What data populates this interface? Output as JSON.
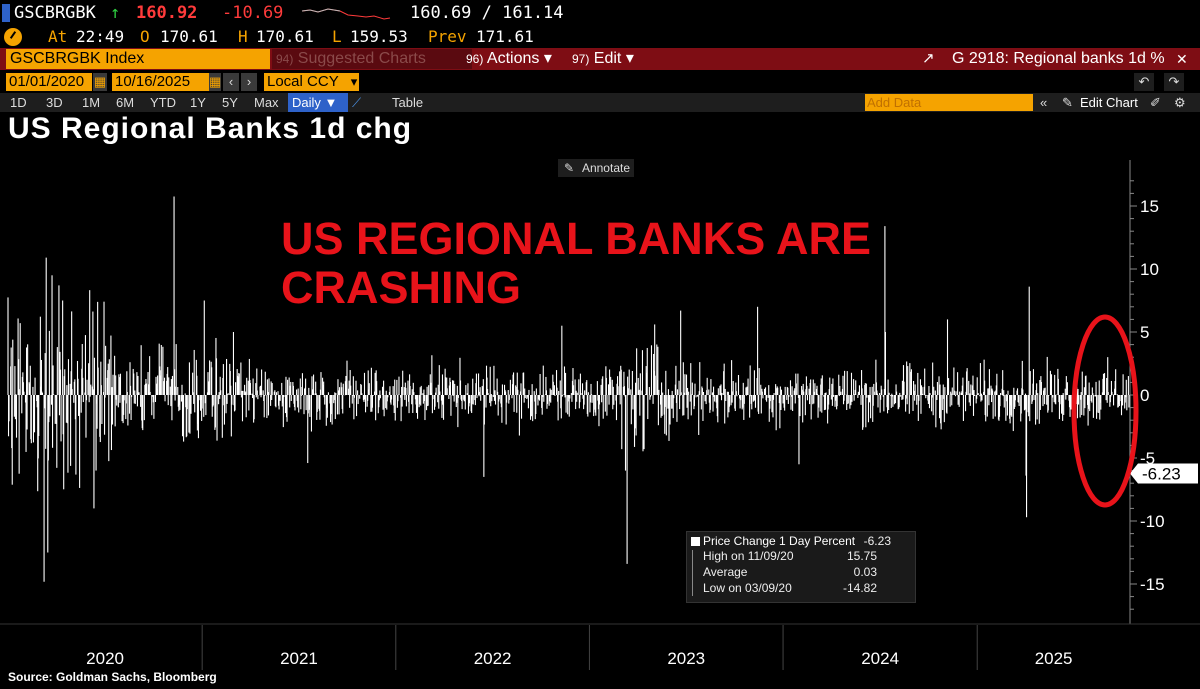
{
  "ticker": {
    "symbol": "GSCBRGBK",
    "arrow": "↑",
    "last": "160.92",
    "change": "-10.69",
    "bid_ask": "160.69 / 161.14"
  },
  "quote": {
    "at_label": "At",
    "at_value": "22:49",
    "open_label": "O",
    "open_value": "170.61",
    "high_label": "H",
    "high_value": "170.61",
    "low_label": "L",
    "low_value": "159.53",
    "prev_label": "Prev",
    "prev_value": "171.61"
  },
  "toolbar": {
    "security": "GSCBRGBK Index",
    "suggested_num": "94)",
    "suggested": "Suggested Charts",
    "actions_num": "96)",
    "actions": "Actions ▾",
    "edit_num": "97)",
    "edit": "Edit ▾",
    "chart_id": "G 2918: Regional banks 1d %"
  },
  "range": {
    "start": "01/01/2020",
    "end": "10/16/2025",
    "currency": "Local CCY"
  },
  "periods": [
    "1D",
    "3D",
    "1M",
    "6M",
    "YTD",
    "1Y",
    "5Y",
    "Max"
  ],
  "frequency": "Daily ▼",
  "table_label": "Table",
  "add_data_placeholder": "Add Data",
  "edit_chart": "Edit Chart",
  "annotate": "Annotate",
  "headline": {
    "line1": "US REGIONAL BANKS ARE",
    "line2": "CRASHING"
  },
  "legend": {
    "series": "Price Change 1 Day Percent",
    "series_value": "-6.23",
    "high_label": "High on 11/09/20",
    "high_value": "15.75",
    "avg_label": "Average",
    "avg_value": "0.03",
    "low_label": "Low on 03/09/20",
    "low_value": "-14.82"
  },
  "source": "Source: Goldman Sachs, Bloomberg",
  "colors": {
    "background": "#000000",
    "series": "#ffffff",
    "headline": "#e8131a",
    "highlight_ellipse": "#e8131a",
    "orange": "#f5a300",
    "menu_bar": "#7e0d14",
    "up_tick": "#2ecc40",
    "down_tick": "#ff3b3b"
  },
  "chart_data": {
    "type": "bar",
    "title": "US Regional Banks 1d chg",
    "series": [
      {
        "name": "Price Change 1 Day Percent",
        "last": -6.23
      }
    ],
    "x_range": [
      "2020-01-01",
      "2025-10-16"
    ],
    "x_tick_labels": [
      "2020",
      "2021",
      "2022",
      "2023",
      "2024",
      "2025"
    ],
    "ylim": [
      -17,
      18
    ],
    "y_ticks": [
      15,
      10,
      5,
      0,
      -5,
      -10,
      -15
    ],
    "last_value_label": "-6.23",
    "grid": false,
    "stats": {
      "high": 15.75,
      "high_date": "11/09/20",
      "average": 0.03,
      "low": -14.82,
      "low_date": "03/09/20"
    },
    "spikes": [
      {
        "date": "2020-03-09",
        "value": -14.82
      },
      {
        "date": "2020-03-13",
        "value": 10.9
      },
      {
        "date": "2020-03-16",
        "value": -12.5
      },
      {
        "date": "2020-03-24",
        "value": 9.5
      },
      {
        "date": "2020-04-06",
        "value": 8.7
      },
      {
        "date": "2020-06-11",
        "value": -9.0
      },
      {
        "date": "2020-11-09",
        "value": 15.75
      },
      {
        "date": "2021-01-05",
        "value": 7.5
      },
      {
        "date": "2021-03-01",
        "value": 5.0
      },
      {
        "date": "2021-07-19",
        "value": -5.4
      },
      {
        "date": "2022-06-16",
        "value": -6.5
      },
      {
        "date": "2022-11-10",
        "value": 5.5
      },
      {
        "date": "2023-03-13",
        "value": -13.4
      },
      {
        "date": "2023-03-10",
        "value": -6.0
      },
      {
        "date": "2023-05-04",
        "value": 5.6
      },
      {
        "date": "2023-06-22",
        "value": 6.7
      },
      {
        "date": "2023-11-14",
        "value": 7.0
      },
      {
        "date": "2024-01-31",
        "value": -5.5
      },
      {
        "date": "2024-07-11",
        "value": 13.4
      },
      {
        "date": "2024-07-12",
        "value": 5.0
      },
      {
        "date": "2024-11-06",
        "value": 6.0
      },
      {
        "date": "2025-04-03",
        "value": -6.4
      },
      {
        "date": "2025-04-04",
        "value": -9.7
      },
      {
        "date": "2025-04-09",
        "value": 8.6
      },
      {
        "date": "2025-10-16",
        "value": -6.23
      }
    ]
  }
}
